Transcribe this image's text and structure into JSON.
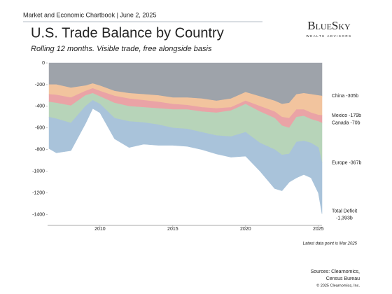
{
  "header": "Market and Economic Chartbook | June 2, 2025",
  "logo": {
    "name": "BlueSky",
    "tagline": "WEALTH ADVISORS"
  },
  "footnote": "Latest data point is Mar 2025",
  "sources": [
    "Sources: Clearnomics,",
    "Census Bureau"
  ],
  "copyright": "© 2025 Clearnomics, Inc.",
  "chart_data": {
    "type": "stacked-area",
    "title": "U.S. Trade Balance by Country",
    "subtitle": "Rolling 12 months. Visible trade, free alongside basis",
    "x": [
      2006.5,
      2007,
      2008,
      2009,
      2009.5,
      2010,
      2011,
      2012,
      2013,
      2014,
      2015,
      2016,
      2017,
      2018,
      2019,
      2020,
      2021,
      2022,
      2022.5,
      2023,
      2023.5,
      2024,
      2024.5,
      2025,
      2025.25
    ],
    "xlim": [
      2006.4,
      2025.25
    ],
    "xticks": [
      2010,
      2015,
      2020,
      2025
    ],
    "ylim": [
      -1500,
      0
    ],
    "yticks": [
      0,
      -200,
      -400,
      -600,
      -800,
      -1000,
      -1200,
      -1400
    ],
    "series": [
      {
        "name": "China",
        "end_label": "-305b",
        "color": "#9ea3aa",
        "values": [
          -200,
          -200,
          -230,
          -210,
          -190,
          -210,
          -260,
          -280,
          -290,
          -300,
          -320,
          -320,
          -330,
          -350,
          -330,
          -270,
          -310,
          -350,
          -380,
          -370,
          -290,
          -280,
          -290,
          -300,
          -305
        ]
      },
      {
        "name": "Mexico",
        "end_label": "-179b",
        "color": "#f2c49e",
        "values": [
          -90,
          -95,
          -90,
          -50,
          -45,
          -50,
          -45,
          -50,
          -55,
          -60,
          -60,
          -70,
          -80,
          -70,
          -80,
          -80,
          -90,
          -100,
          -120,
          -140,
          -140,
          -150,
          -170,
          -180,
          -179
        ]
      },
      {
        "name": "Canada",
        "end_label": "-70b",
        "color": "#eaa3a6",
        "values": [
          -70,
          -75,
          -75,
          -40,
          -45,
          -50,
          -65,
          -70,
          -65,
          -60,
          -50,
          -40,
          -40,
          -40,
          -30,
          -30,
          -50,
          -60,
          -80,
          -90,
          -70,
          -60,
          -60,
          -60,
          -70
        ]
      },
      {
        "name": "Europe",
        "end_label": "-367b",
        "color": "#b7d4b9",
        "values": [
          -140,
          -145,
          -160,
          -100,
          -65,
          -70,
          -140,
          -140,
          -140,
          -150,
          -170,
          -180,
          -190,
          -210,
          -240,
          -260,
          -290,
          -290,
          -270,
          -240,
          -230,
          -230,
          -220,
          -240,
          -367
        ]
      },
      {
        "color": "#a9c3da",
        "values": [
          -290,
          -315,
          -255,
          -160,
          -75,
          -80,
          -190,
          -240,
          -200,
          -190,
          -160,
          -160,
          -160,
          -170,
          -190,
          -220,
          -260,
          -360,
          -330,
          -260,
          -330,
          -310,
          -320,
          -420,
          -472
        ]
      }
    ],
    "total_label": {
      "name": "Total Deficit",
      "value": "-1,393b"
    }
  }
}
